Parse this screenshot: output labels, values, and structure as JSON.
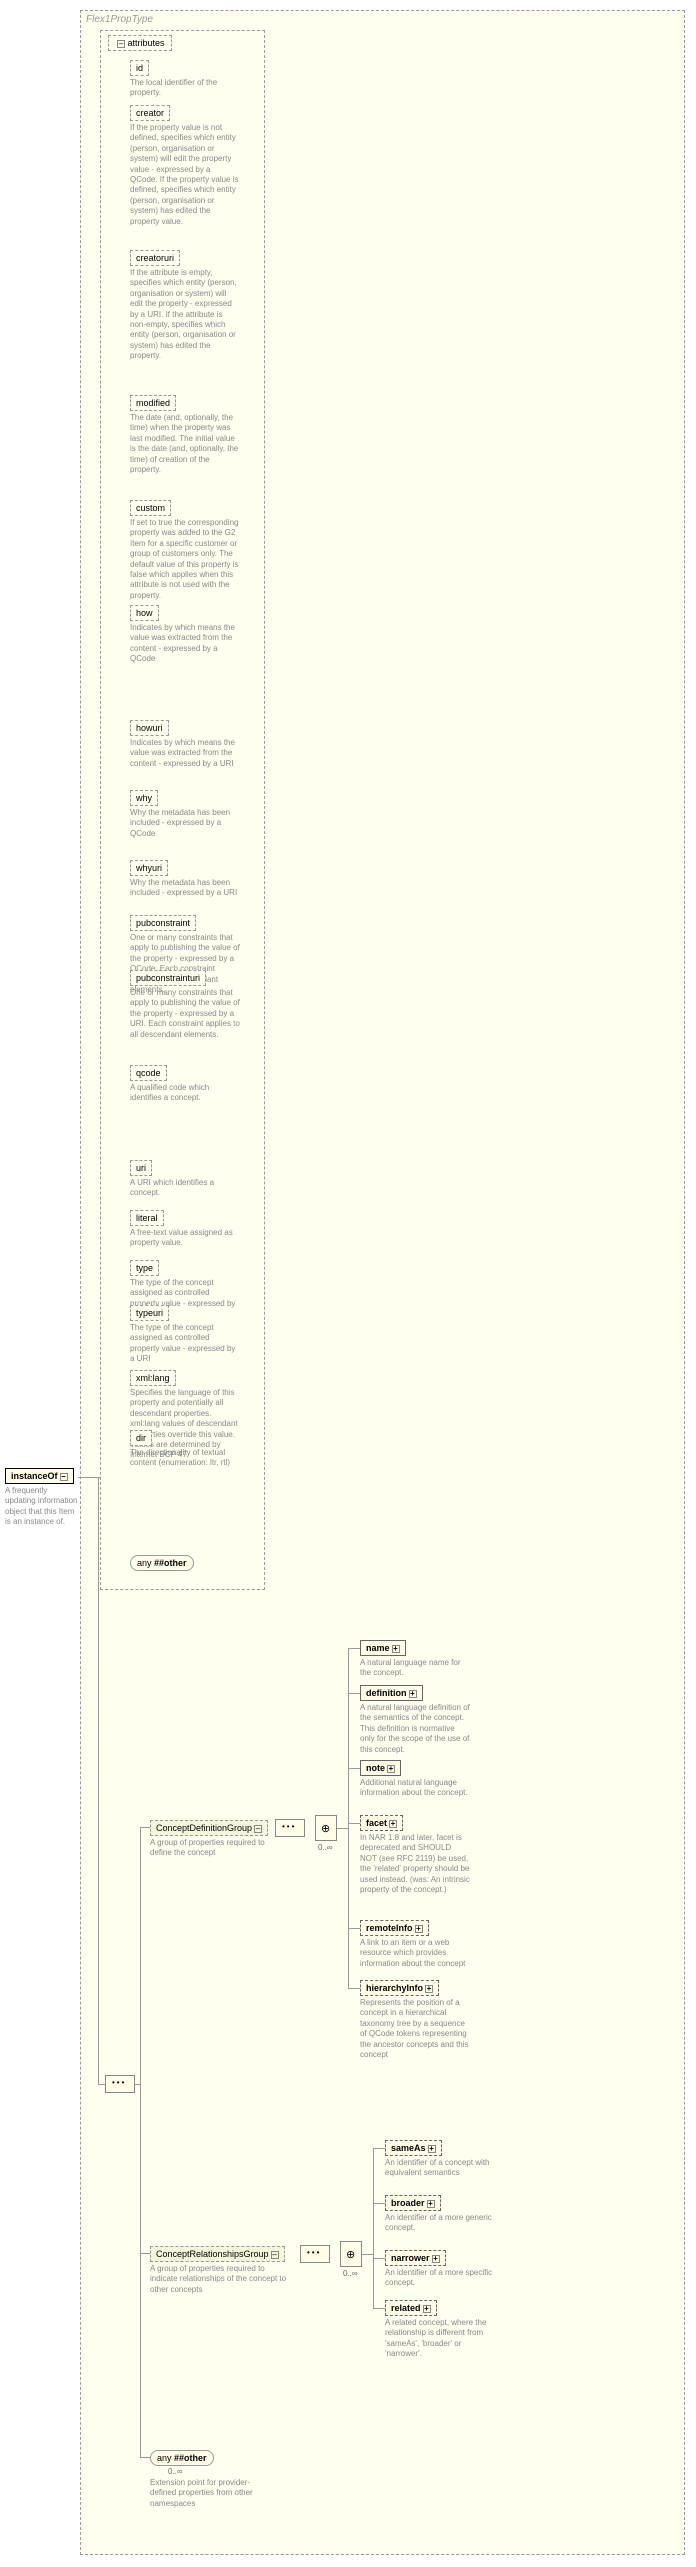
{
  "typeLabel": "Flex1PropType",
  "root": {
    "label": "instanceOf",
    "desc": "A frequently updating information object that this Item is an instance of."
  },
  "attrGroupLabel": "attributes",
  "attrs": [
    {
      "name": "id",
      "desc": "The local identifier of the property."
    },
    {
      "name": "creator",
      "desc": "If the property value is not defined, specifies which entity (person, organisation or system) will edit the property value - expressed by a QCode. If the property value is defined, specifies which entity (person, organisation or system) has edited the property value."
    },
    {
      "name": "creatoruri",
      "desc": "If the attribute is empty, specifies which entity (person, organisation or system) will edit the property - expressed by a URI. If the attribute is non-empty, specifies which entity (person, organisation or system) has edited the property."
    },
    {
      "name": "modified",
      "desc": "The date (and, optionally, the time) when the property was last modified. The initial value is the date (and, optionally, the time) of creation of the property."
    },
    {
      "name": "custom",
      "desc": "If set to true the corresponding property was added to the G2 Item for a specific customer or group of customers only. The default value of this property is false which applies when this attribute is not used with the property."
    },
    {
      "name": "how",
      "desc": "Indicates by which means the value was extracted from the content - expressed by a QCode"
    },
    {
      "name": "howuri",
      "desc": "Indicates by which means the value was extracted from the content - expressed by a URI"
    },
    {
      "name": "why",
      "desc": "Why the metadata has been included - expressed by a QCode"
    },
    {
      "name": "whyuri",
      "desc": "Why the metadata has been included - expressed by a URI"
    },
    {
      "name": "pubconstraint",
      "desc": "One or many constraints that apply to publishing the value of the property - expressed by a QCode. Each constraint applies to all descendant elements."
    },
    {
      "name": "pubconstrainturi",
      "desc": "One or many constraints that apply to publishing the value of the property - expressed by a URI. Each constraint applies to all descendant elements."
    },
    {
      "name": "qcode",
      "desc": "A qualified code which identifies a concept."
    },
    {
      "name": "uri",
      "desc": "A URI which identifies a concept."
    },
    {
      "name": "literal",
      "desc": "A free-text value assigned as property value."
    },
    {
      "name": "type",
      "desc": "The type of the concept assigned as controlled property value - expressed by a QCode"
    },
    {
      "name": "typeuri",
      "desc": "The type of the concept assigned as controlled property value - expressed by a URI"
    },
    {
      "name": "xml:lang",
      "desc": "Specifies the language of this property and potentially all descendant properties. xml:lang values of descendant properties override this value. Values are determined by Internet BCP 47."
    },
    {
      "name": "dir",
      "desc": "The directionality of textual content (enumeration: ltr, rtl)"
    }
  ],
  "anyAttr": "##other",
  "groups": {
    "defGroup": {
      "label": "ConceptDefinitionGroup",
      "desc": "A group of properties required to define the concept"
    },
    "relGroup": {
      "label": "ConceptRelationshipsGroup",
      "desc": "A group of properties required to indicate relationships of the concept to other concepts"
    }
  },
  "defElems": [
    {
      "name": "name",
      "desc": "A natural language name for the concept."
    },
    {
      "name": "definition",
      "desc": "A natural language definition of the semantics of the concept. This definition is normative only for the scope of the use of this concept."
    },
    {
      "name": "note",
      "desc": "Additional natural language information about the concept."
    },
    {
      "name": "facet",
      "desc": "In NAR 1.8 and later, facet is deprecated and SHOULD NOT (see RFC 2119) be used, the 'related' property should be used instead. (was: An intrinsic property of the concept.)"
    },
    {
      "name": "remoteInfo",
      "desc": "A link to an item or a web resource which provides information about the concept"
    },
    {
      "name": "hierarchyInfo",
      "desc": "Represents the position of a concept in a hierarchical taxonomy tree by a sequence of QCode tokens representing the ancestor concepts and this concept"
    }
  ],
  "relElems": [
    {
      "name": "sameAs",
      "desc": "An identifier of a concept with equivalent semantics"
    },
    {
      "name": "broader",
      "desc": "An identifier of a more generic concept."
    },
    {
      "name": "narrower",
      "desc": "An identifier of a more specific concept."
    },
    {
      "name": "related",
      "desc": "A related concept, where the relationship is different from 'sameAs', 'broader' or 'narrower'."
    }
  ],
  "anyElem": {
    "label": "##other",
    "desc": "Extension point for provider-defined properties from other namespaces"
  },
  "occInf": "0..∞"
}
